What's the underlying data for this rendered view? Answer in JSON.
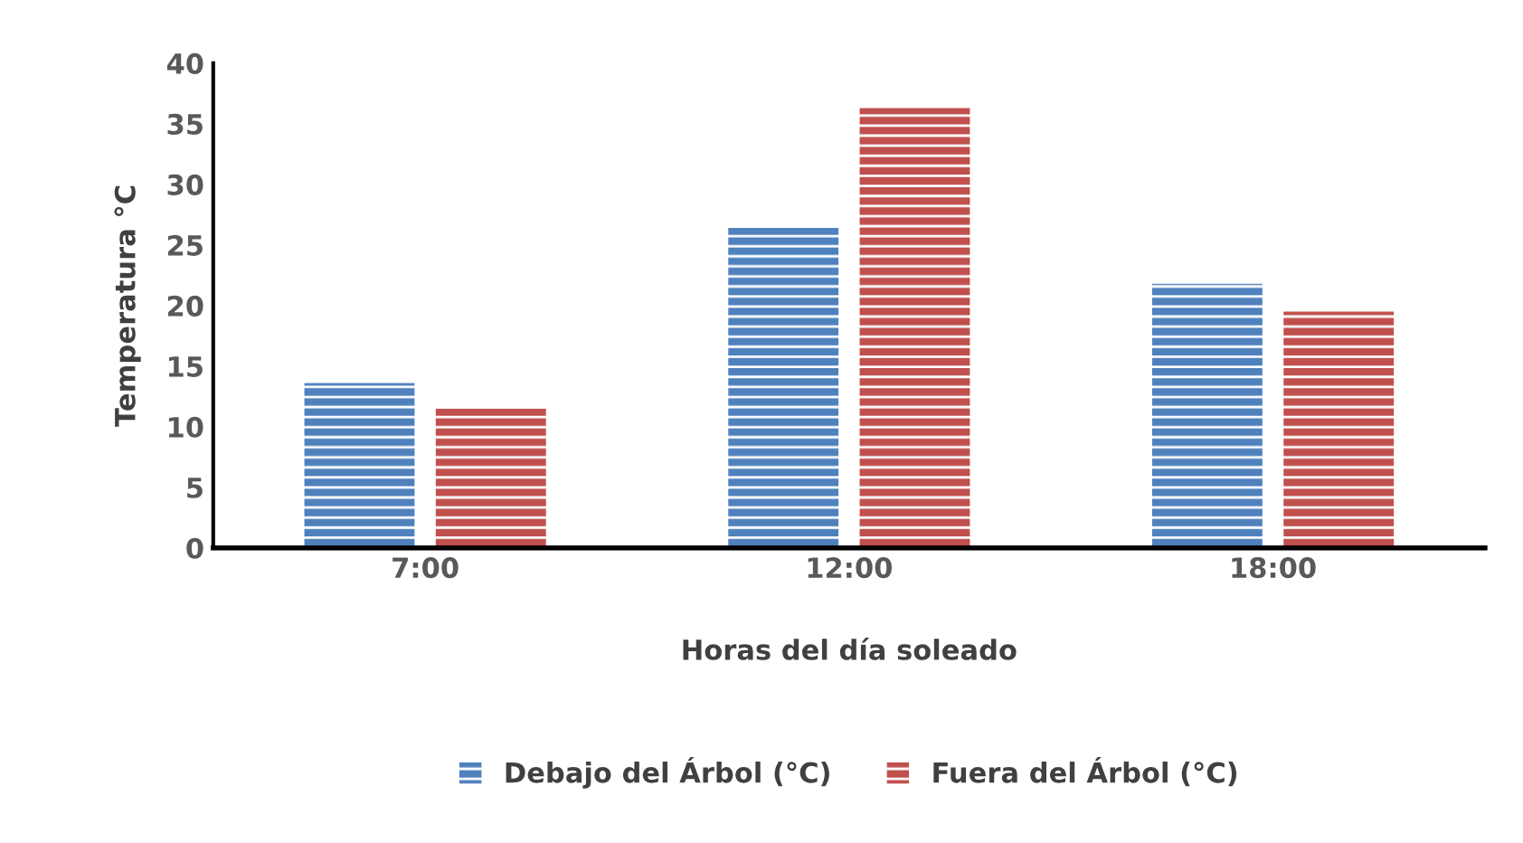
{
  "chart_data": {
    "type": "bar",
    "xlabel": "Horas del día soleado",
    "ylabel": "Temperatura °C",
    "categories": [
      "7:00",
      "12:00",
      "18:00"
    ],
    "series": [
      {
        "name": "Debajo del Árbol (°C)",
        "color": "#4f81bd",
        "values": [
          13.6,
          26.4,
          21.8
        ]
      },
      {
        "name": "Fuera del Árbol (°C)",
        "color": "#c0504d",
        "values": [
          11.5,
          36.3,
          19.5
        ]
      }
    ],
    "ylim": [
      0,
      40
    ],
    "yticks": [
      0,
      5,
      10,
      15,
      20,
      25,
      30,
      35,
      40
    ],
    "grid": false,
    "legend": "bottom"
  }
}
